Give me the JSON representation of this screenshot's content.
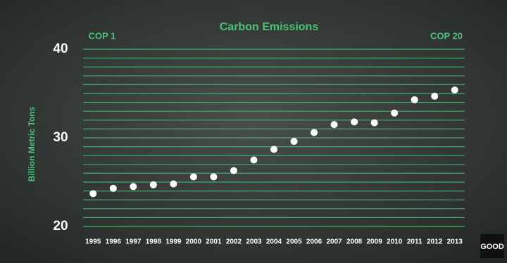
{
  "chart_data": {
    "type": "scatter",
    "title": "Carbon Emissions",
    "y_label": "Billion Metric Tons",
    "annotations": [
      "COP 1",
      "COP 20"
    ],
    "categories": [
      "1995",
      "1996",
      "1997",
      "1998",
      "1999",
      "2000",
      "2001",
      "2002",
      "2003",
      "2004",
      "2005",
      "2006",
      "2007",
      "2008",
      "2009",
      "2010",
      "2011",
      "2012",
      "2013"
    ],
    "values": [
      23.7,
      24.3,
      24.5,
      24.7,
      24.8,
      25.6,
      25.6,
      26.3,
      27.5,
      28.7,
      29.6,
      30.6,
      31.5,
      31.8,
      31.7,
      32.8,
      34.3,
      34.7,
      35.4
    ],
    "color": "#ffffff",
    "grid_color": "#3fae6c",
    "ylim": [
      20,
      40
    ],
    "yticks": [
      20,
      30,
      40
    ],
    "gridlines": [
      20,
      21,
      22,
      23,
      24,
      25,
      26,
      27,
      28,
      29,
      30,
      31,
      32,
      33,
      34,
      35,
      36,
      37,
      38,
      39,
      40
    ],
    "grid": true
  },
  "logo": "GOOD"
}
